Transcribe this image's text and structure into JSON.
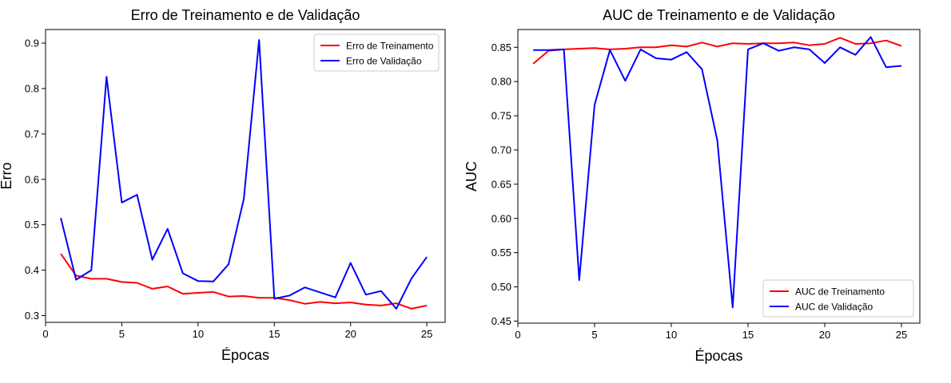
{
  "chart_data": [
    {
      "type": "line",
      "title": "Erro de Treinamento e de Validação",
      "xlabel": "Épocas",
      "ylabel": "Erro",
      "xlim": [
        0,
        26.2
      ],
      "ylim": [
        0.285,
        0.93
      ],
      "xticks": [
        "0",
        "5",
        "10",
        "15",
        "20",
        "25"
      ],
      "yticks": [
        "0.3",
        "0.4",
        "0.5",
        "0.6",
        "0.7",
        "0.8",
        "0.9"
      ],
      "legend_position": "top-right",
      "x": [
        1,
        2,
        3,
        4,
        5,
        6,
        7,
        8,
        9,
        10,
        11,
        12,
        13,
        14,
        15,
        16,
        17,
        18,
        19,
        20,
        21,
        22,
        23,
        24,
        25
      ],
      "series": [
        {
          "name": "Erro de Treinamento",
          "color": "#ff0000",
          "values": [
            0.436,
            0.388,
            0.381,
            0.381,
            0.374,
            0.372,
            0.359,
            0.364,
            0.348,
            0.35,
            0.352,
            0.342,
            0.343,
            0.339,
            0.339,
            0.334,
            0.326,
            0.33,
            0.327,
            0.329,
            0.324,
            0.322,
            0.327,
            0.315,
            0.322
          ]
        },
        {
          "name": "Erro de Validação",
          "color": "#0000ff",
          "values": [
            0.515,
            0.379,
            0.4,
            0.826,
            0.549,
            0.566,
            0.423,
            0.491,
            0.393,
            0.376,
            0.375,
            0.413,
            0.557,
            0.907,
            0.337,
            0.344,
            0.362,
            0.351,
            0.34,
            0.416,
            0.346,
            0.354,
            0.315,
            0.382,
            0.429
          ]
        }
      ]
    },
    {
      "type": "line",
      "title": "AUC de Treinamento e de Validação",
      "xlabel": "Épocas",
      "ylabel": "AUC",
      "xlim": [
        0,
        26.2
      ],
      "ylim": [
        0.447,
        0.876
      ],
      "xticks": [
        "0",
        "5",
        "10",
        "15",
        "20",
        "25"
      ],
      "yticks": [
        "0.45",
        "0.50",
        "0.55",
        "0.60",
        "0.65",
        "0.70",
        "0.75",
        "0.80",
        "0.85"
      ],
      "legend_position": "bottom-right",
      "x": [
        1,
        2,
        3,
        4,
        5,
        6,
        7,
        8,
        9,
        10,
        11,
        12,
        13,
        14,
        15,
        16,
        17,
        18,
        19,
        20,
        21,
        22,
        23,
        24,
        25
      ],
      "series": [
        {
          "name": "AUC de Treinamento",
          "color": "#ff0000",
          "values": [
            0.826,
            0.845,
            0.847,
            0.848,
            0.849,
            0.847,
            0.848,
            0.85,
            0.85,
            0.853,
            0.851,
            0.857,
            0.851,
            0.856,
            0.855,
            0.856,
            0.856,
            0.857,
            0.853,
            0.855,
            0.864,
            0.855,
            0.856,
            0.86,
            0.852
          ]
        },
        {
          "name": "AUC de Validação",
          "color": "#0000ff",
          "values": [
            0.846,
            0.846,
            0.847,
            0.51,
            0.766,
            0.846,
            0.801,
            0.847,
            0.834,
            0.832,
            0.843,
            0.818,
            0.714,
            0.47,
            0.847,
            0.856,
            0.845,
            0.85,
            0.847,
            0.827,
            0.85,
            0.839,
            0.865,
            0.821,
            0.823
          ]
        }
      ]
    }
  ]
}
